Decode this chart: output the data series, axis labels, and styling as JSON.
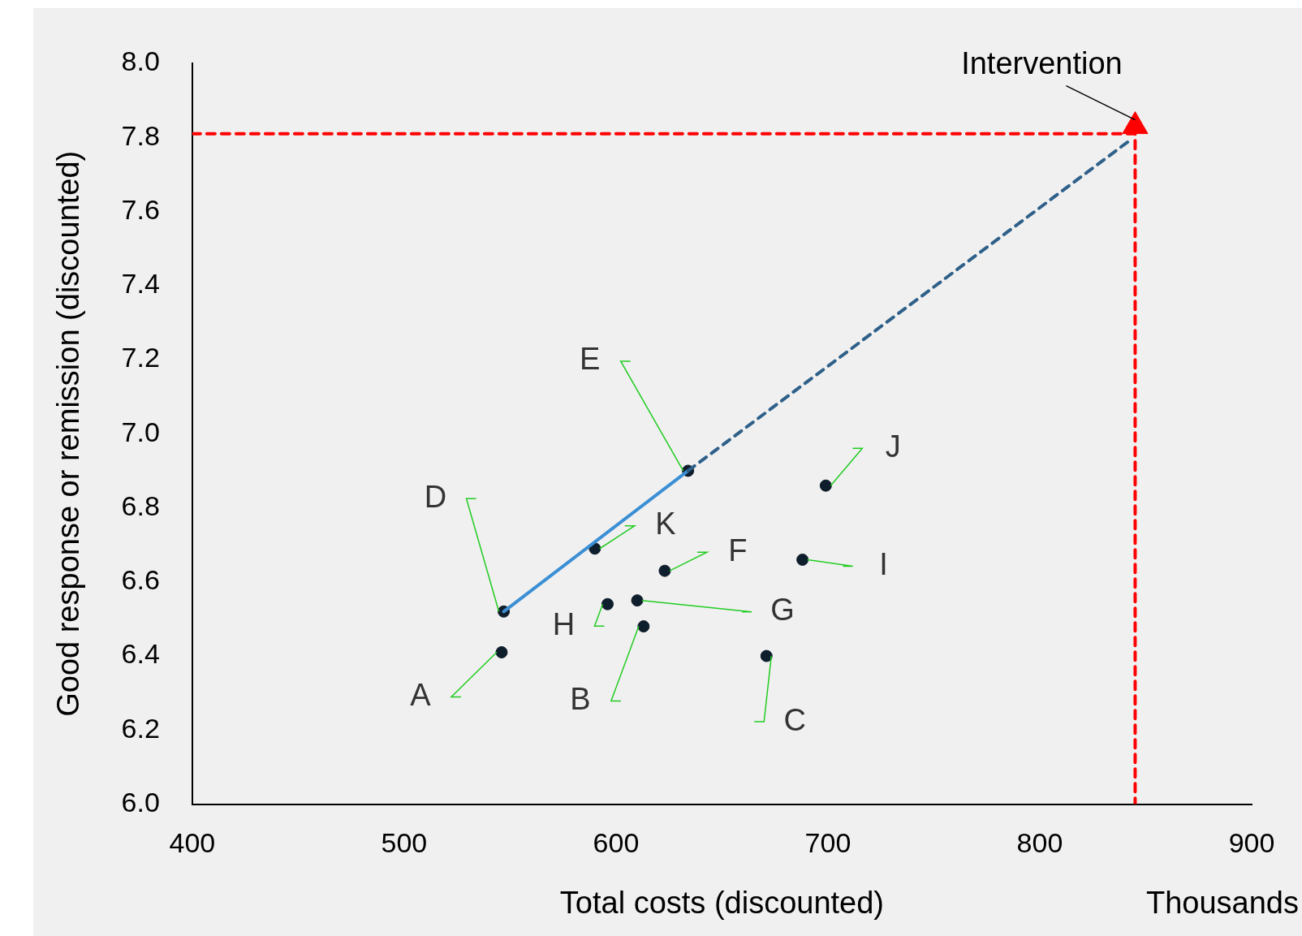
{
  "chart_data": {
    "type": "scatter",
    "xlabel": "Total costs (discounted)",
    "ylabel": "Good response or remission (discounted)",
    "xlim": [
      400,
      900
    ],
    "xticks": [
      400,
      500,
      600,
      700,
      800,
      900
    ],
    "ylim": [
      6.0,
      8.0
    ],
    "yticks": [
      {
        "value": 6.0,
        "label": "6.0"
      },
      {
        "value": 6.2,
        "label": "6.2"
      },
      {
        "value": 6.4,
        "label": "6.4"
      },
      {
        "value": 6.6,
        "label": "6.6"
      },
      {
        "value": 6.8,
        "label": "6.8"
      },
      {
        "value": 7.0,
        "label": "7.0"
      },
      {
        "value": 7.2,
        "label": "7.2"
      },
      {
        "value": 7.4,
        "label": "7.4"
      },
      {
        "value": 7.6,
        "label": "7.6"
      },
      {
        "value": 7.8,
        "label": "7.8"
      },
      {
        "value": 8.0,
        "label": "8.0"
      }
    ],
    "grid": false,
    "legend": false,
    "series": [
      {
        "type": "line",
        "color": "#ff0000",
        "line_style": "dashed",
        "marker": "none",
        "x": [
          400,
          845,
          845
        ],
        "values": [
          7.81,
          7.81,
          6.0
        ]
      },
      {
        "type": "line",
        "color": "#2e6089",
        "line_style": "dashed",
        "marker": "none",
        "x": [
          634,
          842
        ],
        "values": [
          6.9,
          7.79
        ]
      },
      {
        "type": "line",
        "color": "#3b8fd4",
        "line_style": "solid",
        "marker": "none",
        "x": [
          547,
          634
        ],
        "values": [
          6.52,
          6.9
        ]
      },
      {
        "type": "scatter",
        "color": "#0f1e2c",
        "marker": "circle",
        "x": [
          546,
          613,
          671,
          547,
          634,
          623,
          610,
          596,
          688,
          699,
          590
        ],
        "values": [
          6.41,
          6.48,
          6.4,
          6.52,
          6.9,
          6.63,
          6.55,
          6.54,
          6.66,
          6.86,
          6.69
        ]
      },
      {
        "type": "scatter",
        "color": "#ff0000",
        "marker": "triangle",
        "x": [
          845
        ],
        "values": [
          7.83
        ]
      }
    ],
    "annotations": [
      {
        "text": "A",
        "x": 546,
        "y": 6.41
      },
      {
        "text": "B",
        "x": 613,
        "y": 6.48
      },
      {
        "text": "C",
        "x": 671,
        "y": 6.4
      },
      {
        "text": "D",
        "x": 547,
        "y": 6.52
      },
      {
        "text": "E",
        "x": 634,
        "y": 6.9
      },
      {
        "text": "F",
        "x": 623,
        "y": 6.63
      },
      {
        "text": "G",
        "x": 610,
        "y": 6.55
      },
      {
        "text": "H",
        "x": 596,
        "y": 6.54
      },
      {
        "text": "I",
        "x": 688,
        "y": 6.66
      },
      {
        "text": "J",
        "x": 699,
        "y": 6.86
      },
      {
        "text": "K",
        "x": 590,
        "y": 6.69
      },
      {
        "text": "Intervention",
        "x": 845,
        "y": 7.83
      },
      "Thousands"
    ]
  }
}
